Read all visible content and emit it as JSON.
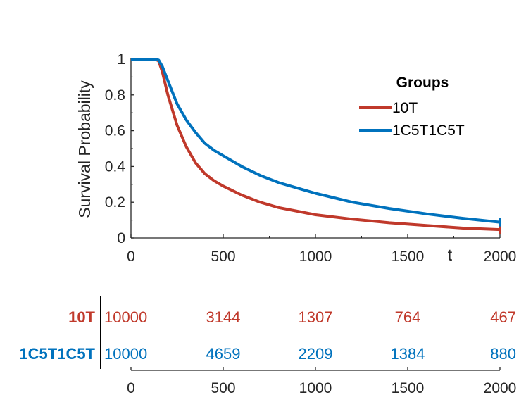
{
  "chart_data": {
    "type": "line",
    "title": "",
    "xlabel": "t",
    "ylabel": "Survival Probability",
    "xlim": [
      0,
      2000
    ],
    "ylim": [
      0,
      1
    ],
    "x_ticks": [
      "0",
      "500",
      "1000",
      "1500",
      "2000"
    ],
    "y_ticks": [
      "0",
      "0.2",
      "0.4",
      "0.6",
      "0.8",
      "1"
    ],
    "x_tick_values": [
      0,
      500,
      1000,
      1500,
      2000
    ],
    "y_tick_values": [
      0,
      0.2,
      0.4,
      0.6,
      0.8,
      1
    ],
    "grid": false,
    "legend": {
      "title": "Groups",
      "placement": "top-right"
    },
    "series": [
      {
        "name": "10T",
        "color": "#C0392B",
        "x": [
          0,
          130,
          150,
          170,
          200,
          250,
          300,
          350,
          400,
          450,
          500,
          600,
          700,
          800,
          900,
          1000,
          1200,
          1400,
          1600,
          1800,
          2000
        ],
        "y": [
          1,
          1,
          0.99,
          0.93,
          0.8,
          0.63,
          0.51,
          0.42,
          0.36,
          0.32,
          0.29,
          0.24,
          0.2,
          0.17,
          0.15,
          0.13,
          0.105,
          0.085,
          0.07,
          0.055,
          0.047
        ]
      },
      {
        "name": "1C5T1C5T",
        "color": "#0072BD",
        "x": [
          0,
          130,
          150,
          170,
          200,
          250,
          300,
          350,
          400,
          450,
          500,
          600,
          700,
          800,
          900,
          1000,
          1200,
          1400,
          1600,
          1800,
          2000
        ],
        "y": [
          1,
          1,
          0.995,
          0.96,
          0.88,
          0.75,
          0.66,
          0.59,
          0.53,
          0.49,
          0.46,
          0.4,
          0.35,
          0.31,
          0.28,
          0.25,
          0.2,
          0.165,
          0.135,
          0.11,
          0.088
        ]
      }
    ],
    "risk_table": {
      "x_ticks": [
        "0",
        "500",
        "1000",
        "1500",
        "2000"
      ],
      "x_tick_values": [
        0,
        500,
        1000,
        1500,
        2000
      ],
      "rows": [
        {
          "group": "10T",
          "color": "#C0392B",
          "values": [
            "10000",
            "3144",
            "1307",
            "764",
            "467"
          ]
        },
        {
          "group": "1C5T1C5T",
          "color": "#0072BD",
          "values": [
            "10000",
            "4659",
            "2209",
            "1384",
            "880"
          ]
        }
      ]
    }
  }
}
